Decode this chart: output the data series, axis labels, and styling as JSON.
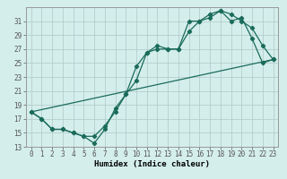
{
  "xlabel": "Humidex (Indice chaleur)",
  "bg_color": "#d4eeec",
  "line_color": "#1a6b5a",
  "grid_color": "#b0c8c6",
  "xlim": [
    -0.5,
    23.5
  ],
  "ylim": [
    13,
    33
  ],
  "xticks": [
    0,
    1,
    2,
    3,
    4,
    5,
    6,
    7,
    8,
    9,
    10,
    11,
    12,
    13,
    14,
    15,
    16,
    17,
    18,
    19,
    20,
    21,
    22,
    23
  ],
  "yticks": [
    13,
    15,
    17,
    19,
    21,
    23,
    25,
    27,
    29,
    31
  ],
  "series1_x": [
    0,
    1,
    2,
    3,
    4,
    5,
    6,
    7,
    8,
    9,
    10,
    11,
    12,
    13,
    14,
    15,
    16,
    17,
    18,
    19,
    20,
    21,
    22,
    23
  ],
  "series1_y": [
    18,
    17,
    15.5,
    15.5,
    15,
    14.5,
    14.5,
    16,
    18,
    20.5,
    22.5,
    26.5,
    27,
    27,
    27,
    31,
    31,
    32,
    32.5,
    32,
    31,
    30,
    27.5,
    25.5
  ],
  "series2_x": [
    0,
    1,
    2,
    3,
    4,
    5,
    6,
    7,
    8,
    9,
    10,
    11,
    12,
    13,
    14,
    15,
    16,
    17,
    18,
    19,
    20,
    21,
    22,
    23
  ],
  "series2_y": [
    18,
    17,
    15.5,
    15.5,
    15,
    14.5,
    13.5,
    15.5,
    18.5,
    20.5,
    24.5,
    26.5,
    27.5,
    27,
    27,
    29.5,
    31,
    31.5,
    32.5,
    31,
    31.5,
    28.5,
    25,
    25.5
  ],
  "series3_x": [
    0,
    23
  ],
  "series3_y": [
    18,
    25.5
  ],
  "marker": "D",
  "marker_size": 2.2,
  "line_width": 0.9,
  "tick_fontsize": 5.5,
  "xlabel_fontsize": 6.5
}
